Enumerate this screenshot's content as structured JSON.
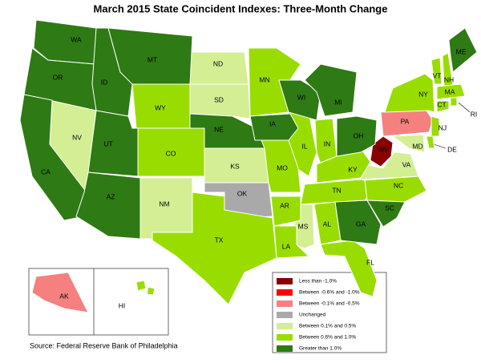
{
  "title": "March 2015 State Coincident Indexes: Three-Month Change",
  "legend": {
    "items": [
      {
        "label": "Less than -1.0%",
        "color": "#8b0000",
        "states": [
          "WV"
        ]
      },
      {
        "label": "Between -0.6% and -1.0%",
        "color": "#ff0000",
        "states": []
      },
      {
        "label": "Between -0.1% and -0.5%",
        "color": "#f4817f",
        "states": [
          "PA",
          "AK"
        ]
      },
      {
        "label": "Unchanged",
        "color": "#a9a9a9",
        "states": [
          "OK"
        ]
      },
      {
        "label": "Between 0.1% and 0.5%",
        "color": "#d4ee94",
        "states": [
          "ND",
          "SD",
          "NV",
          "KS",
          "NM",
          "MS",
          "VA",
          "MD"
        ]
      },
      {
        "label": "Between 0.6% and 1.0%",
        "color": "#99dd00",
        "states": [
          "MN",
          "WY",
          "CO",
          "IL",
          "IN",
          "MO",
          "KY",
          "TN",
          "AR",
          "LA",
          "AL",
          "TX",
          "FL",
          "NC",
          "NY",
          "VT",
          "NH",
          "MA",
          "CT",
          "RI",
          "NJ",
          "DE",
          "HI"
        ]
      },
      {
        "label": "Greater than 1.0%",
        "color": "#2e7a14",
        "states": [
          "WA",
          "OR",
          "CA",
          "ID",
          "MT",
          "UT",
          "AZ",
          "NE",
          "IA",
          "WI",
          "MI",
          "OH",
          "GA",
          "SC",
          "ME"
        ]
      }
    ]
  },
  "source": "Source: Federal Reserve Bank of Philadelphia"
}
